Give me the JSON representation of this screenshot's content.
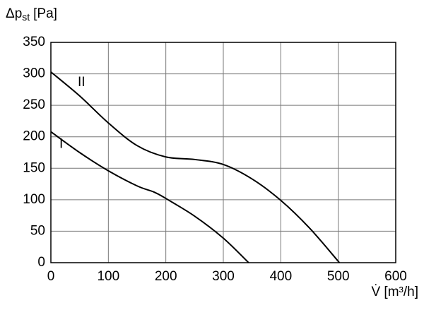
{
  "chart_data": {
    "type": "line",
    "ylabel": [
      "Δp",
      "st",
      "[Pa]"
    ],
    "xlabel": "V̇ [m³/h]",
    "xlim": [
      0,
      600
    ],
    "xticks": [
      0,
      100,
      200,
      300,
      400,
      500,
      600
    ],
    "ylim": [
      0,
      350
    ],
    "yticks": [
      0,
      50,
      100,
      150,
      200,
      250,
      300,
      350
    ],
    "grid": true,
    "series": [
      {
        "name": "II",
        "color": "#000000",
        "x": [
          0,
          50,
          100,
          150,
          200,
          250,
          300,
          350,
          400,
          450,
          502
        ],
        "values": [
          303,
          265,
          222,
          186,
          168,
          164,
          156,
          133,
          99,
          55,
          0
        ]
      },
      {
        "name": "I",
        "color": "#000000",
        "x": [
          0,
          50,
          100,
          150,
          180,
          200,
          250,
          300,
          344
        ],
        "values": [
          208,
          175,
          146,
          122,
          112,
          102,
          74,
          39,
          0
        ]
      }
    ]
  }
}
